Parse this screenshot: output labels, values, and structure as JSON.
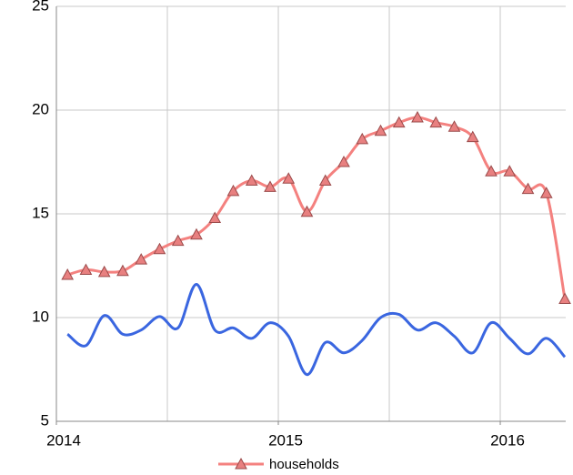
{
  "chart_data": {
    "type": "line",
    "x": [
      2014.05,
      2014.133,
      2014.216,
      2014.299,
      2014.382,
      2014.465,
      2014.548,
      2014.631,
      2014.714,
      2014.797,
      2014.88,
      2014.963,
      2015.046,
      2015.129,
      2015.212,
      2015.295,
      2015.378,
      2015.461,
      2015.544,
      2015.627,
      2015.71,
      2015.793,
      2015.876,
      2015.959,
      2016.042,
      2016.125,
      2016.208,
      2016.291
    ],
    "series": [
      {
        "name": "households",
        "color": "#f4817f",
        "marker": "triangle",
        "values": [
          12.06,
          12.3,
          12.2,
          12.25,
          12.8,
          13.3,
          13.7,
          14.0,
          14.8,
          16.1,
          16.6,
          16.3,
          16.7,
          15.1,
          16.6,
          17.5,
          18.6,
          19.0,
          19.4,
          19.65,
          19.4,
          19.2,
          18.7,
          17.05,
          17.05,
          16.2,
          16.0,
          10.9
        ]
      },
      {
        "color": "#3a66e0",
        "values": [
          9.2,
          8.65,
          10.1,
          9.2,
          9.4,
          10.05,
          9.5,
          11.6,
          9.4,
          9.5,
          9.0,
          9.75,
          9.1,
          7.25,
          8.8,
          8.3,
          8.9,
          10.0,
          10.15,
          9.4,
          9.75,
          9.1,
          8.3,
          9.75,
          9.0,
          8.25,
          9.0,
          8.1
        ]
      }
    ],
    "xlim": [
      2014,
      2016.295
    ],
    "xticks": [
      2014,
      2015,
      2016
    ],
    "xgrid": [
      2014.5,
      2015,
      2015.5,
      2016
    ],
    "ylim": [
      5,
      25
    ],
    "yticks": [
      5,
      10,
      15,
      20,
      25
    ],
    "grid": true,
    "smooth": true,
    "legend": "bottom"
  }
}
